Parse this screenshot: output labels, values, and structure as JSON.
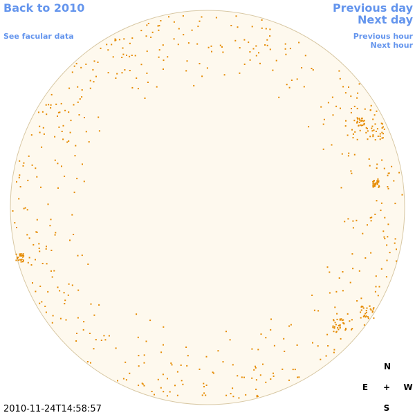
{
  "nav": {
    "back": "Back to 2010",
    "facular": "See facular data",
    "previous_day": "Previous day",
    "next_day": "Next day",
    "previous_hour": "Previous hour",
    "next_hour": "Next hour"
  },
  "timestamp": "2010-11-24T14:58:57",
  "compass": {
    "north": "N",
    "east": "E",
    "center": "+",
    "west": "W",
    "south": "S"
  }
}
